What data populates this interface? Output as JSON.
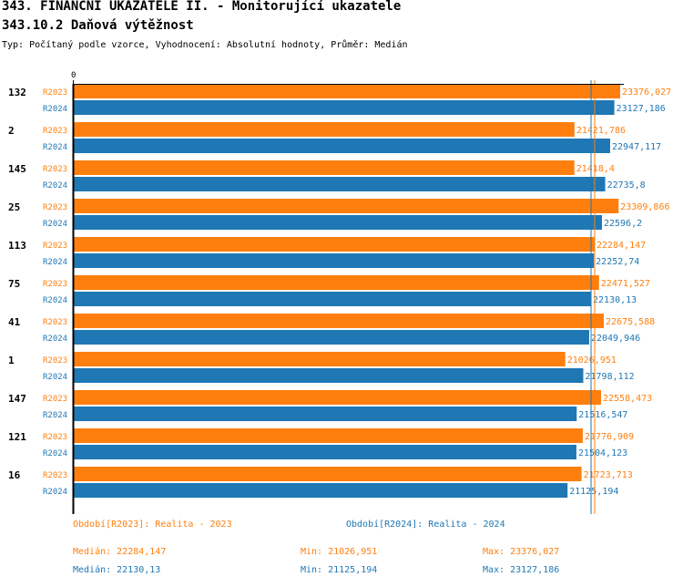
{
  "header": {
    "title": "343. FINANČNÍ UKAZATELE II. - Monitorující ukazatele",
    "subtitle": "343.10.2 Daňová výtěžnost",
    "info": "Typ: Počítaný podle vzorce, Vyhodnocení: Absolutní hodnoty, Průměr: Medián"
  },
  "chart_data": {
    "type": "bar",
    "orientation": "horizontal",
    "x_tick_label": "0",
    "colors": {
      "R2023": "#ff7f0e",
      "R2024": "#1f77b4"
    },
    "groups": [
      {
        "label": "132",
        "series": [
          {
            "name": "R2023",
            "value": 23376.027,
            "label": "23376,027"
          },
          {
            "name": "R2024",
            "value": 23127.186,
            "label": "23127,186"
          }
        ]
      },
      {
        "label": "2",
        "series": [
          {
            "name": "R2023",
            "value": 21421.786,
            "label": "21421,786"
          },
          {
            "name": "R2024",
            "value": 22947.117,
            "label": "22947,117"
          }
        ]
      },
      {
        "label": "145",
        "series": [
          {
            "name": "R2023",
            "value": 21418.4,
            "label": "21418,4"
          },
          {
            "name": "R2024",
            "value": 22735.8,
            "label": "22735,8"
          }
        ]
      },
      {
        "label": "25",
        "series": [
          {
            "name": "R2023",
            "value": 23309.866,
            "label": "23309,866"
          },
          {
            "name": "R2024",
            "value": 22596.2,
            "label": "22596,2"
          }
        ]
      },
      {
        "label": "113",
        "series": [
          {
            "name": "R2023",
            "value": 22284.147,
            "label": "22284,147"
          },
          {
            "name": "R2024",
            "value": 22252.74,
            "label": "22252,74"
          }
        ]
      },
      {
        "label": "75",
        "series": [
          {
            "name": "R2023",
            "value": 22471.527,
            "label": "22471,527"
          },
          {
            "name": "R2024",
            "value": 22130.13,
            "label": "22130,13"
          }
        ]
      },
      {
        "label": "41",
        "series": [
          {
            "name": "R2023",
            "value": 22675.588,
            "label": "22675,588"
          },
          {
            "name": "R2024",
            "value": 22049.946,
            "label": "22049,946"
          }
        ]
      },
      {
        "label": "1",
        "series": [
          {
            "name": "R2023",
            "value": 21026.951,
            "label": "21026,951"
          },
          {
            "name": "R2024",
            "value": 21798.112,
            "label": "21798,112"
          }
        ]
      },
      {
        "label": "147",
        "series": [
          {
            "name": "R2023",
            "value": 22558.473,
            "label": "22558,473"
          },
          {
            "name": "R2024",
            "value": 21516.547,
            "label": "21516,547"
          }
        ]
      },
      {
        "label": "121",
        "series": [
          {
            "name": "R2023",
            "value": 21776.909,
            "label": "21776,909"
          },
          {
            "name": "R2024",
            "value": 21504.123,
            "label": "21504,123"
          }
        ]
      },
      {
        "label": "16",
        "series": [
          {
            "name": "R2023",
            "value": 21723.713,
            "label": "21723,713"
          },
          {
            "name": "R2024",
            "value": 21125.194,
            "label": "21125,194"
          }
        ]
      }
    ],
    "median_lines": {
      "R2023": 22284.147,
      "R2024": 22130.13
    }
  },
  "footer": {
    "legend_2023": "Období[R2023]: Realita - 2023",
    "legend_2024": "Období[R2024]: Realita - 2024",
    "median_2023": "Medián: 22284,147",
    "min_2023": "Min: 21026,951",
    "max_2023": "Max: 23376,027",
    "median_2024": "Medián: 22130,13",
    "min_2024": "Min: 21125,194",
    "max_2024": "Max: 23127,186"
  }
}
